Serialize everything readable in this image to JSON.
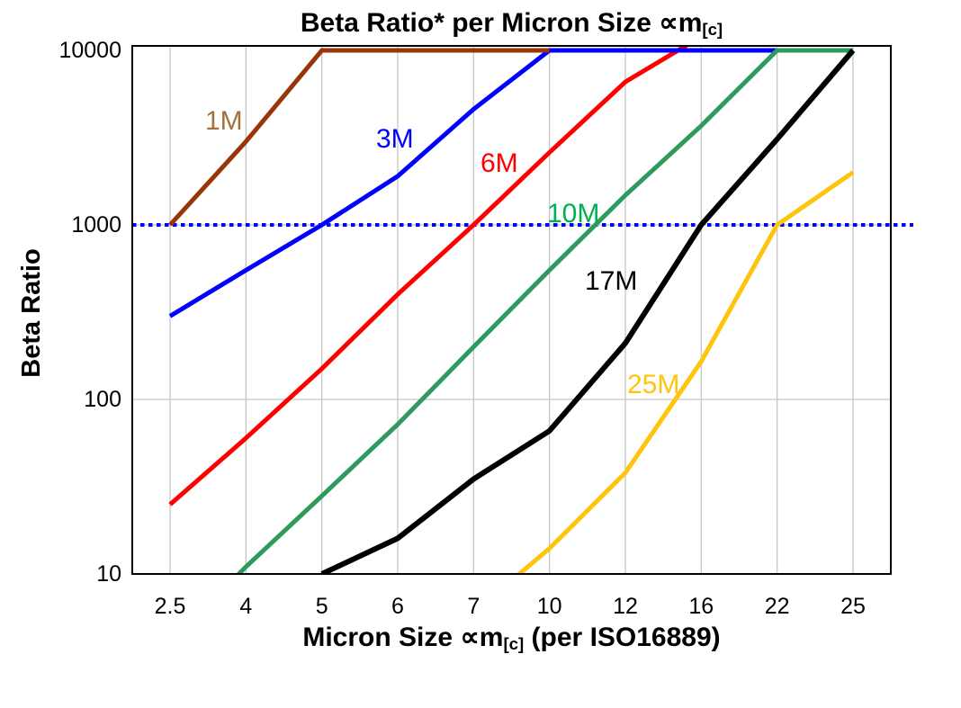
{
  "chart_data": {
    "type": "line",
    "title_main": "Beta Ratio* per Micron Size ∝m",
    "title_sub": "[c]",
    "x_axis": {
      "title_pre": "Micron Size ∝m",
      "title_sub": "[c]",
      "title_post": " (per ISO16889)",
      "categories": [
        "2.5",
        "4",
        "5",
        "6",
        "7",
        "10",
        "12",
        "16",
        "22",
        "25"
      ]
    },
    "y_axis": {
      "title": "Beta Ratio",
      "scale": "log",
      "ticks": [
        10,
        100,
        1000,
        10000
      ],
      "range": [
        10,
        10000
      ]
    },
    "grid": {
      "color": "#C6C6C6",
      "axis_color": "#000000"
    },
    "reference_line": {
      "value": 1000,
      "color": "#0000FF",
      "style": "dotted"
    },
    "series": [
      {
        "name": "1M",
        "color": "#993608",
        "label_color": "#A3713B",
        "values": [
          1000,
          3000,
          10000,
          10000,
          10000,
          10000,
          null,
          null,
          null,
          null
        ]
      },
      {
        "name": "3M",
        "color": "#0000FF",
        "label_color": "#0000FF",
        "values": [
          300,
          550,
          1000,
          1900,
          4600,
          10000,
          10000,
          10000,
          10000,
          10000
        ]
      },
      {
        "name": "6M",
        "color": "#FF0000",
        "label_color": "#FF0000",
        "values": [
          25,
          60,
          150,
          400,
          1000,
          2600,
          6600,
          12000,
          12000,
          12000
        ]
      },
      {
        "name": "10M",
        "color": "#2E9A5C",
        "label_color": "#00B050",
        "values": [
          4,
          11,
          28,
          72,
          200,
          550,
          1480,
          3700,
          10000,
          10000
        ]
      },
      {
        "name": "17M",
        "color": "#000000",
        "label_color": "#000000",
        "values": [
          null,
          null,
          10,
          16,
          35,
          66,
          210,
          1000,
          3100,
          10000
        ]
      },
      {
        "name": "25M",
        "color": "#FFC40C",
        "label_color": "#FFC40C",
        "values": [
          null,
          null,
          null,
          null,
          6,
          14,
          38,
          165,
          1000,
          2000
        ]
      }
    ],
    "draw_order": [
      "6M",
      "3M",
      "10M",
      "17M",
      "25M",
      "1M"
    ],
    "legend": "none (series labeled inline)"
  }
}
